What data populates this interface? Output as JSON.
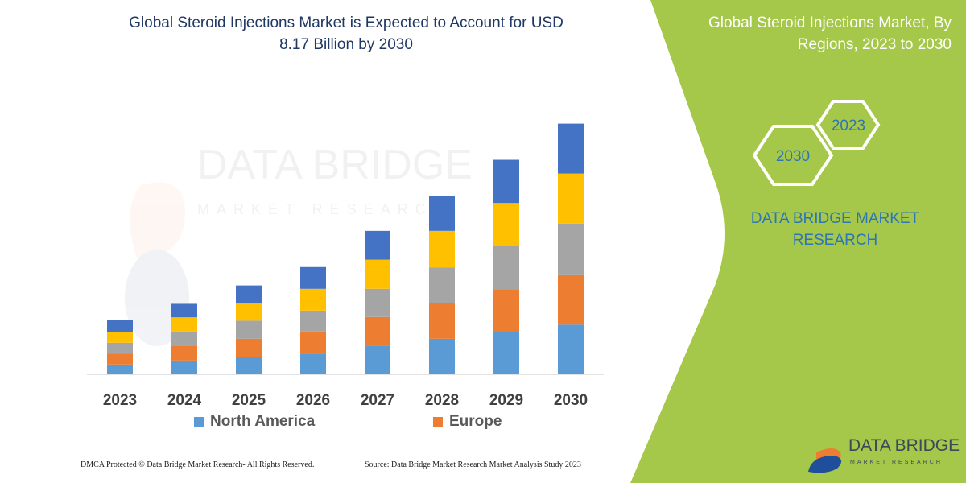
{
  "header": {
    "title_line1": "Global Steroid Injections Market is Expected to Account for USD",
    "title_line2": "8.17 Billion by 2030"
  },
  "side_panel": {
    "title_line1": "Global Steroid Injections Market, By",
    "title_line2": "Regions, 2023 to 2030",
    "hex_2023": "2023",
    "hex_2030": "2030",
    "brand_line1": "DATA BRIDGE MARKET",
    "brand_line2": "RESEARCH",
    "logo_text": "DATA BRIDGE",
    "logo_subtext": "MARKET RESEARCH",
    "panel_color": "#a5c84a"
  },
  "footer": {
    "left": "DMCA Protected © Data Bridge Market Research-  All Rights Reserved.",
    "right": "Source: Data Bridge Market Research  Market Analysis Study 2023"
  },
  "watermark": {
    "line1": "DATA BRIDGE",
    "line2": "MARKET RESEARCH"
  },
  "chart_data": {
    "type": "bar",
    "stacked": true,
    "title": "Global Steroid Injections Market is Expected to Account for USD 8.17 Billion by 2030",
    "xlabel": "",
    "ylabel": "",
    "unit": "USD Billion (estimated)",
    "grid": false,
    "legend_placement": "bottom",
    "categories": [
      "2023",
      "2024",
      "2025",
      "2026",
      "2027",
      "2028",
      "2029",
      "2030"
    ],
    "series": [
      {
        "name": "North America",
        "color": "#5b9bd5",
        "values": [
          0.32,
          0.45,
          0.57,
          0.68,
          0.93,
          1.16,
          1.39,
          1.62
        ]
      },
      {
        "name": "Europe",
        "color": "#ed7d31",
        "values": [
          0.36,
          0.48,
          0.59,
          0.72,
          0.94,
          1.16,
          1.39,
          1.64
        ]
      },
      {
        "color": "#a5a5a5",
        "values": [
          0.35,
          0.47,
          0.59,
          0.68,
          0.92,
          1.17,
          1.42,
          1.66
        ]
      },
      {
        "color": "#ffc000",
        "values": [
          0.36,
          0.46,
          0.56,
          0.71,
          0.95,
          1.19,
          1.39,
          1.63
        ]
      },
      {
        "color": "#4472c4",
        "values": [
          0.37,
          0.44,
          0.59,
          0.71,
          0.94,
          1.15,
          1.41,
          1.63
        ]
      }
    ]
  }
}
